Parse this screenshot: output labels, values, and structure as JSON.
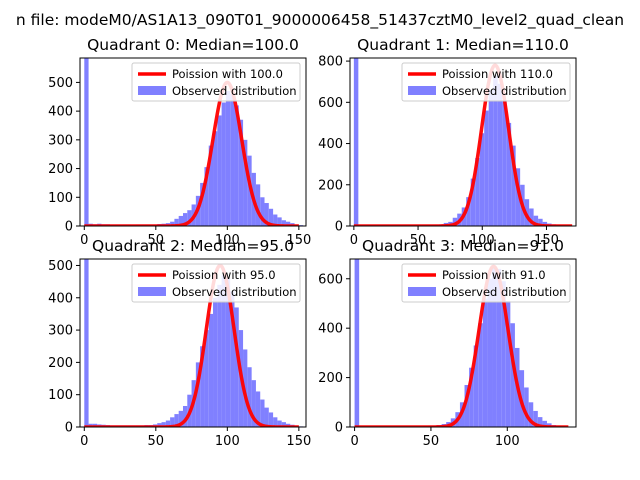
{
  "figure": {
    "suptitle": "n file: modeM0/AS1A13_090T01_9000006458_51437cztM0_level2_quad_clean"
  },
  "colors": {
    "hist": "#8080ff",
    "fit": "#ff0000",
    "axis": "#000000"
  },
  "chart_data": [
    {
      "type": "bar",
      "title": "Quadrant 0: Median=100.0",
      "xlim": [
        -3,
        155
      ],
      "ylim": [
        0,
        585
      ],
      "xticks": [
        0,
        50,
        100,
        150
      ],
      "yticks": [
        0,
        100,
        200,
        300,
        400,
        500
      ],
      "bin_width": 3,
      "bins": [
        [
          0,
          3,
          585
        ],
        [
          3,
          6,
          8
        ],
        [
          6,
          9,
          6
        ],
        [
          9,
          12,
          8
        ],
        [
          12,
          15,
          6
        ],
        [
          15,
          18,
          6
        ],
        [
          18,
          21,
          5
        ],
        [
          21,
          24,
          5
        ],
        [
          24,
          27,
          5
        ],
        [
          27,
          30,
          5
        ],
        [
          30,
          33,
          5
        ],
        [
          33,
          36,
          4
        ],
        [
          36,
          39,
          5
        ],
        [
          39,
          42,
          5
        ],
        [
          42,
          45,
          5
        ],
        [
          45,
          48,
          5
        ],
        [
          48,
          51,
          5
        ],
        [
          51,
          54,
          7
        ],
        [
          54,
          57,
          8
        ],
        [
          57,
          60,
          10
        ],
        [
          60,
          63,
          15
        ],
        [
          63,
          66,
          25
        ],
        [
          66,
          69,
          35
        ],
        [
          69,
          72,
          45
        ],
        [
          72,
          75,
          55
        ],
        [
          75,
          78,
          75
        ],
        [
          78,
          81,
          105
        ],
        [
          81,
          84,
          150
        ],
        [
          84,
          87,
          205
        ],
        [
          87,
          90,
          280
        ],
        [
          90,
          93,
          330
        ],
        [
          93,
          96,
          385
        ],
        [
          96,
          99,
          430
        ],
        [
          99,
          102,
          470
        ],
        [
          102,
          105,
          460
        ],
        [
          105,
          108,
          420
        ],
        [
          108,
          111,
          370
        ],
        [
          111,
          114,
          300
        ],
        [
          114,
          117,
          245
        ],
        [
          117,
          120,
          185
        ],
        [
          120,
          123,
          145
        ],
        [
          123,
          126,
          100
        ],
        [
          126,
          129,
          80
        ],
        [
          129,
          132,
          60
        ],
        [
          132,
          135,
          40
        ],
        [
          135,
          138,
          30
        ],
        [
          138,
          141,
          20
        ],
        [
          141,
          144,
          15
        ],
        [
          144,
          147,
          10
        ],
        [
          147,
          150,
          5
        ],
        [
          150,
          153,
          3
        ]
      ],
      "fit": {
        "mean": 100.0,
        "peak": 500,
        "sigma": 10.0,
        "xrange": [
          0,
          150
        ]
      },
      "legend": [
        "Poission with 100.0",
        "Observed distribution"
      ],
      "legend_loc": "upper right"
    },
    {
      "type": "bar",
      "title": "Quadrant 1: Median=110.0",
      "xlim": [
        -3,
        173
      ],
      "ylim": [
        0,
        815
      ],
      "xticks": [
        0,
        50,
        100,
        150
      ],
      "yticks": [
        0,
        200,
        400,
        600,
        800
      ],
      "bin_width": 3.5,
      "bins": [
        [
          0,
          3.5,
          815
        ],
        [
          3.5,
          7,
          5
        ],
        [
          7,
          10.5,
          4
        ],
        [
          10.5,
          14,
          5
        ],
        [
          14,
          17.5,
          4
        ],
        [
          17.5,
          21,
          4
        ],
        [
          21,
          24.5,
          4
        ],
        [
          24.5,
          28,
          4
        ],
        [
          28,
          31.5,
          4
        ],
        [
          31.5,
          35,
          4
        ],
        [
          35,
          38.5,
          4
        ],
        [
          38.5,
          42,
          4
        ],
        [
          42,
          45.5,
          4
        ],
        [
          45.5,
          49,
          4
        ],
        [
          49,
          52.5,
          4
        ],
        [
          52.5,
          56,
          4
        ],
        [
          56,
          59.5,
          5
        ],
        [
          59.5,
          63,
          5
        ],
        [
          63,
          66.5,
          6
        ],
        [
          66.5,
          70,
          8
        ],
        [
          70,
          73.5,
          15
        ],
        [
          73.5,
          77,
          20
        ],
        [
          77,
          80.5,
          40
        ],
        [
          80.5,
          84,
          60
        ],
        [
          84,
          87.5,
          90
        ],
        [
          87.5,
          91,
          140
        ],
        [
          91,
          94.5,
          230
        ],
        [
          94.5,
          98,
          330
        ],
        [
          98,
          101.5,
          450
        ],
        [
          101.5,
          105,
          560
        ],
        [
          105,
          108.5,
          660
        ],
        [
          108.5,
          112,
          730
        ],
        [
          112,
          115.5,
          690
        ],
        [
          115.5,
          119,
          610
        ],
        [
          119,
          122.5,
          500
        ],
        [
          122.5,
          126,
          390
        ],
        [
          126,
          129.5,
          280
        ],
        [
          129.5,
          133,
          200
        ],
        [
          133,
          136.5,
          130
        ],
        [
          136.5,
          140,
          85
        ],
        [
          140,
          143.5,
          50
        ],
        [
          143.5,
          147,
          35
        ],
        [
          147,
          150.5,
          20
        ],
        [
          150.5,
          154,
          12
        ],
        [
          154,
          157.5,
          8
        ],
        [
          157.5,
          161,
          5
        ],
        [
          161,
          164.5,
          3
        ],
        [
          164.5,
          168,
          3
        ]
      ],
      "fit": {
        "mean": 110.0,
        "peak": 780,
        "sigma": 10.5,
        "xrange": [
          0,
          170
        ]
      },
      "legend": [
        "Poission with 110.0",
        "Observed distribution"
      ],
      "legend_loc": "upper right"
    },
    {
      "type": "bar",
      "title": "Quadrant 2: Median=95.0",
      "xlim": [
        -3,
        155
      ],
      "ylim": [
        0,
        520
      ],
      "xticks": [
        0,
        50,
        100,
        150
      ],
      "yticks": [
        0,
        100,
        200,
        300,
        400,
        500
      ],
      "bin_width": 3,
      "bins": [
        [
          0,
          3,
          520
        ],
        [
          3,
          6,
          10
        ],
        [
          6,
          9,
          10
        ],
        [
          9,
          12,
          8
        ],
        [
          12,
          15,
          7
        ],
        [
          15,
          18,
          6
        ],
        [
          18,
          21,
          5
        ],
        [
          21,
          24,
          5
        ],
        [
          24,
          27,
          5
        ],
        [
          27,
          30,
          5
        ],
        [
          30,
          33,
          5
        ],
        [
          33,
          36,
          5
        ],
        [
          36,
          39,
          5
        ],
        [
          39,
          42,
          5
        ],
        [
          42,
          45,
          6
        ],
        [
          45,
          48,
          6
        ],
        [
          48,
          51,
          8
        ],
        [
          51,
          54,
          12
        ],
        [
          54,
          57,
          15
        ],
        [
          57,
          60,
          20
        ],
        [
          60,
          63,
          30
        ],
        [
          63,
          66,
          40
        ],
        [
          66,
          69,
          50
        ],
        [
          69,
          72,
          65
        ],
        [
          72,
          75,
          100
        ],
        [
          75,
          78,
          145
        ],
        [
          78,
          81,
          200
        ],
        [
          81,
          84,
          250
        ],
        [
          84,
          87,
          300
        ],
        [
          87,
          90,
          350
        ],
        [
          90,
          93,
          400
        ],
        [
          93,
          96,
          440
        ],
        [
          96,
          99,
          470
        ],
        [
          99,
          102,
          460
        ],
        [
          102,
          105,
          420
        ],
        [
          105,
          108,
          370
        ],
        [
          108,
          111,
          300
        ],
        [
          111,
          114,
          240
        ],
        [
          114,
          117,
          185
        ],
        [
          117,
          120,
          145
        ],
        [
          120,
          123,
          110
        ],
        [
          123,
          126,
          85
        ],
        [
          126,
          129,
          60
        ],
        [
          129,
          132,
          45
        ],
        [
          132,
          135,
          30
        ],
        [
          135,
          138,
          20
        ],
        [
          138,
          141,
          15
        ],
        [
          141,
          144,
          10
        ],
        [
          144,
          147,
          7
        ],
        [
          147,
          150,
          4
        ],
        [
          150,
          153,
          2
        ]
      ],
      "fit": {
        "mean": 95.0,
        "peak": 500,
        "sigma": 9.7,
        "xrange": [
          0,
          150
        ]
      },
      "legend": [
        "Poission with 95.0",
        "Observed distribution"
      ],
      "legend_loc": "upper right"
    },
    {
      "type": "bar",
      "title": "Quadrant 3: Median=91.0",
      "xlim": [
        -3,
        145
      ],
      "ylim": [
        0,
        680
      ],
      "xticks": [
        0,
        50,
        100
      ],
      "yticks": [
        0,
        200,
        400,
        600
      ],
      "bin_width": 3,
      "bins": [
        [
          0,
          3,
          680
        ],
        [
          3,
          6,
          3
        ],
        [
          6,
          9,
          3
        ],
        [
          9,
          12,
          3
        ],
        [
          12,
          15,
          3
        ],
        [
          15,
          18,
          3
        ],
        [
          18,
          21,
          3
        ],
        [
          21,
          24,
          3
        ],
        [
          24,
          27,
          3
        ],
        [
          27,
          30,
          3
        ],
        [
          30,
          33,
          3
        ],
        [
          33,
          36,
          3
        ],
        [
          36,
          39,
          3
        ],
        [
          39,
          42,
          3
        ],
        [
          42,
          45,
          3
        ],
        [
          45,
          48,
          4
        ],
        [
          48,
          51,
          5
        ],
        [
          51,
          54,
          6
        ],
        [
          54,
          57,
          8
        ],
        [
          57,
          60,
          12
        ],
        [
          60,
          63,
          20
        ],
        [
          63,
          66,
          35
        ],
        [
          66,
          69,
          60
        ],
        [
          69,
          72,
          100
        ],
        [
          72,
          75,
          170
        ],
        [
          75,
          78,
          240
        ],
        [
          78,
          81,
          330
        ],
        [
          81,
          84,
          420
        ],
        [
          84,
          87,
          520
        ],
        [
          87,
          90,
          600
        ],
        [
          90,
          93,
          650
        ],
        [
          93,
          96,
          640
        ],
        [
          96,
          99,
          590
        ],
        [
          99,
          102,
          510
        ],
        [
          102,
          105,
          420
        ],
        [
          105,
          108,
          320
        ],
        [
          108,
          111,
          230
        ],
        [
          111,
          114,
          160
        ],
        [
          114,
          117,
          100
        ],
        [
          117,
          120,
          65
        ],
        [
          120,
          123,
          40
        ],
        [
          123,
          126,
          25
        ],
        [
          126,
          129,
          15
        ],
        [
          129,
          132,
          8
        ],
        [
          132,
          135,
          5
        ],
        [
          135,
          138,
          3
        ],
        [
          138,
          141,
          2
        ]
      ],
      "fit": {
        "mean": 91.0,
        "peak": 650,
        "sigma": 9.5,
        "xrange": [
          0,
          140
        ]
      },
      "legend": [
        "Poission with 91.0",
        "Observed distribution"
      ],
      "legend_loc": "upper right"
    }
  ]
}
